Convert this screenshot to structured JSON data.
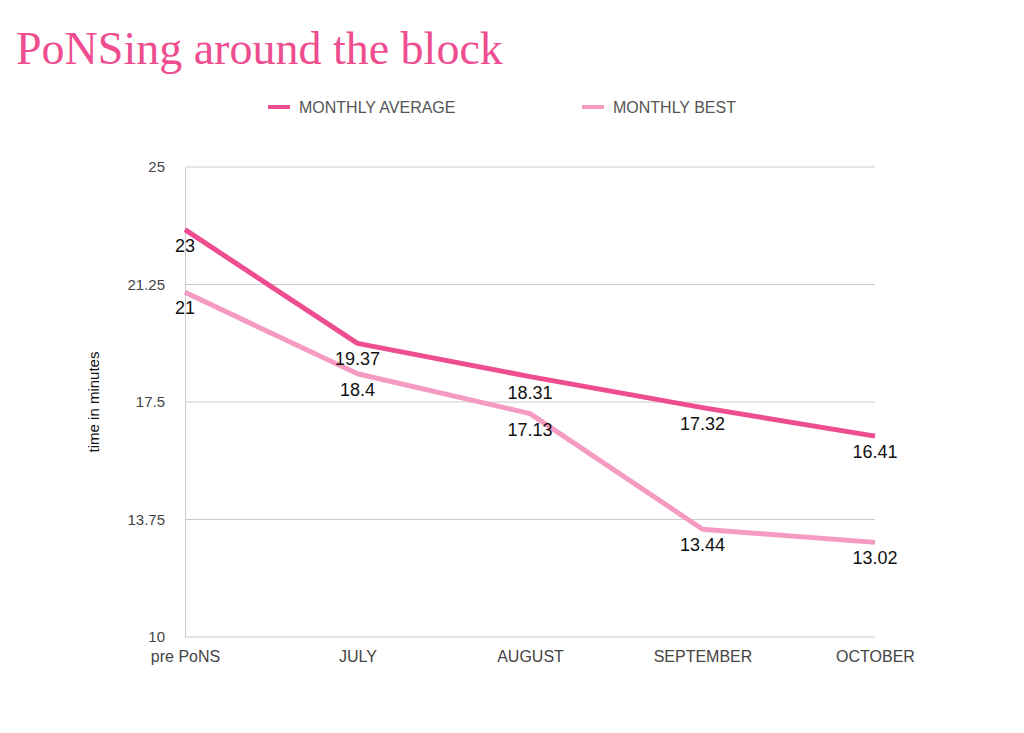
{
  "chart_data": {
    "type": "line",
    "title": "PoNSing around the block",
    "y_label": "time in minutes",
    "categories": [
      "pre PoNS",
      "JULY",
      "AUGUST",
      "SEPTEMBER",
      "OCTOBER"
    ],
    "series": [
      {
        "name": "MONTHLY AVERAGE",
        "color": "#ee4d8f",
        "values": [
          23,
          19.37,
          18.31,
          17.32,
          16.41
        ]
      },
      {
        "name": "MONTHLY BEST",
        "color": "#f59bc1",
        "values": [
          21,
          18.4,
          17.13,
          13.44,
          13.02
        ]
      }
    ],
    "ylim": [
      10,
      25
    ],
    "yticks": [
      10,
      13.75,
      17.5,
      21.25,
      25
    ],
    "grid": true,
    "legend": "top",
    "data_labels": true
  }
}
